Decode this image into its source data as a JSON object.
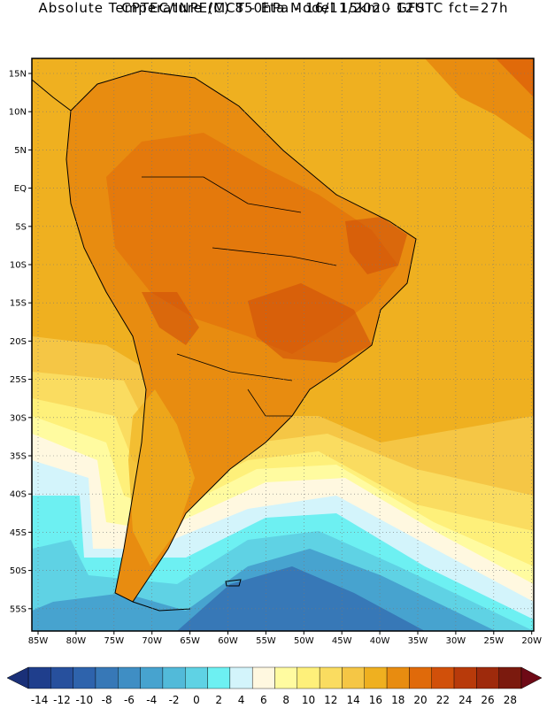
{
  "header": {
    "line1": "CPTEC/INPE/MCT -  Eta Model 15km - GFS",
    "line2": "Absolute Temperature (C) 850hPa - 16/11/2020 12UTC fct=27h"
  },
  "map": {
    "lat_labels": [
      "15N",
      "10N",
      "5N",
      "EQ",
      "5S",
      "10S",
      "15S",
      "20S",
      "25S",
      "30S",
      "35S",
      "40S",
      "45S",
      "50S",
      "55S"
    ],
    "lon_labels": [
      "85W",
      "80W",
      "75W",
      "70W",
      "65W",
      "60W",
      "55W",
      "50W",
      "45W",
      "40W",
      "35W",
      "30W",
      "25W",
      "20W"
    ],
    "grid_lines": true
  },
  "legend": {
    "labels": [
      "-14",
      "-12",
      "-10",
      "-8",
      "-6",
      "-4",
      "-2",
      "0",
      "2",
      "4",
      "6",
      "8",
      "10",
      "12",
      "14",
      "16",
      "18",
      "20",
      "22",
      "24",
      "26",
      "28"
    ],
    "colors": [
      "#1f3e8c",
      "#27509d",
      "#2e63ac",
      "#3778b7",
      "#3f8ec4",
      "#47a3cf",
      "#52bad9",
      "#5fd2e4",
      "#6df0f2",
      "#d3f4fb",
      "#fff8e0",
      "#fffba0",
      "#fef07a",
      "#fadc60",
      "#f5c645",
      "#efb020",
      "#e88c10",
      "#e06a0a",
      "#d1500a",
      "#b83a0a",
      "#9e2a0c",
      "#7b1a0e"
    ],
    "under_color": "#1a3078",
    "over_color": "#6e0a16"
  }
}
